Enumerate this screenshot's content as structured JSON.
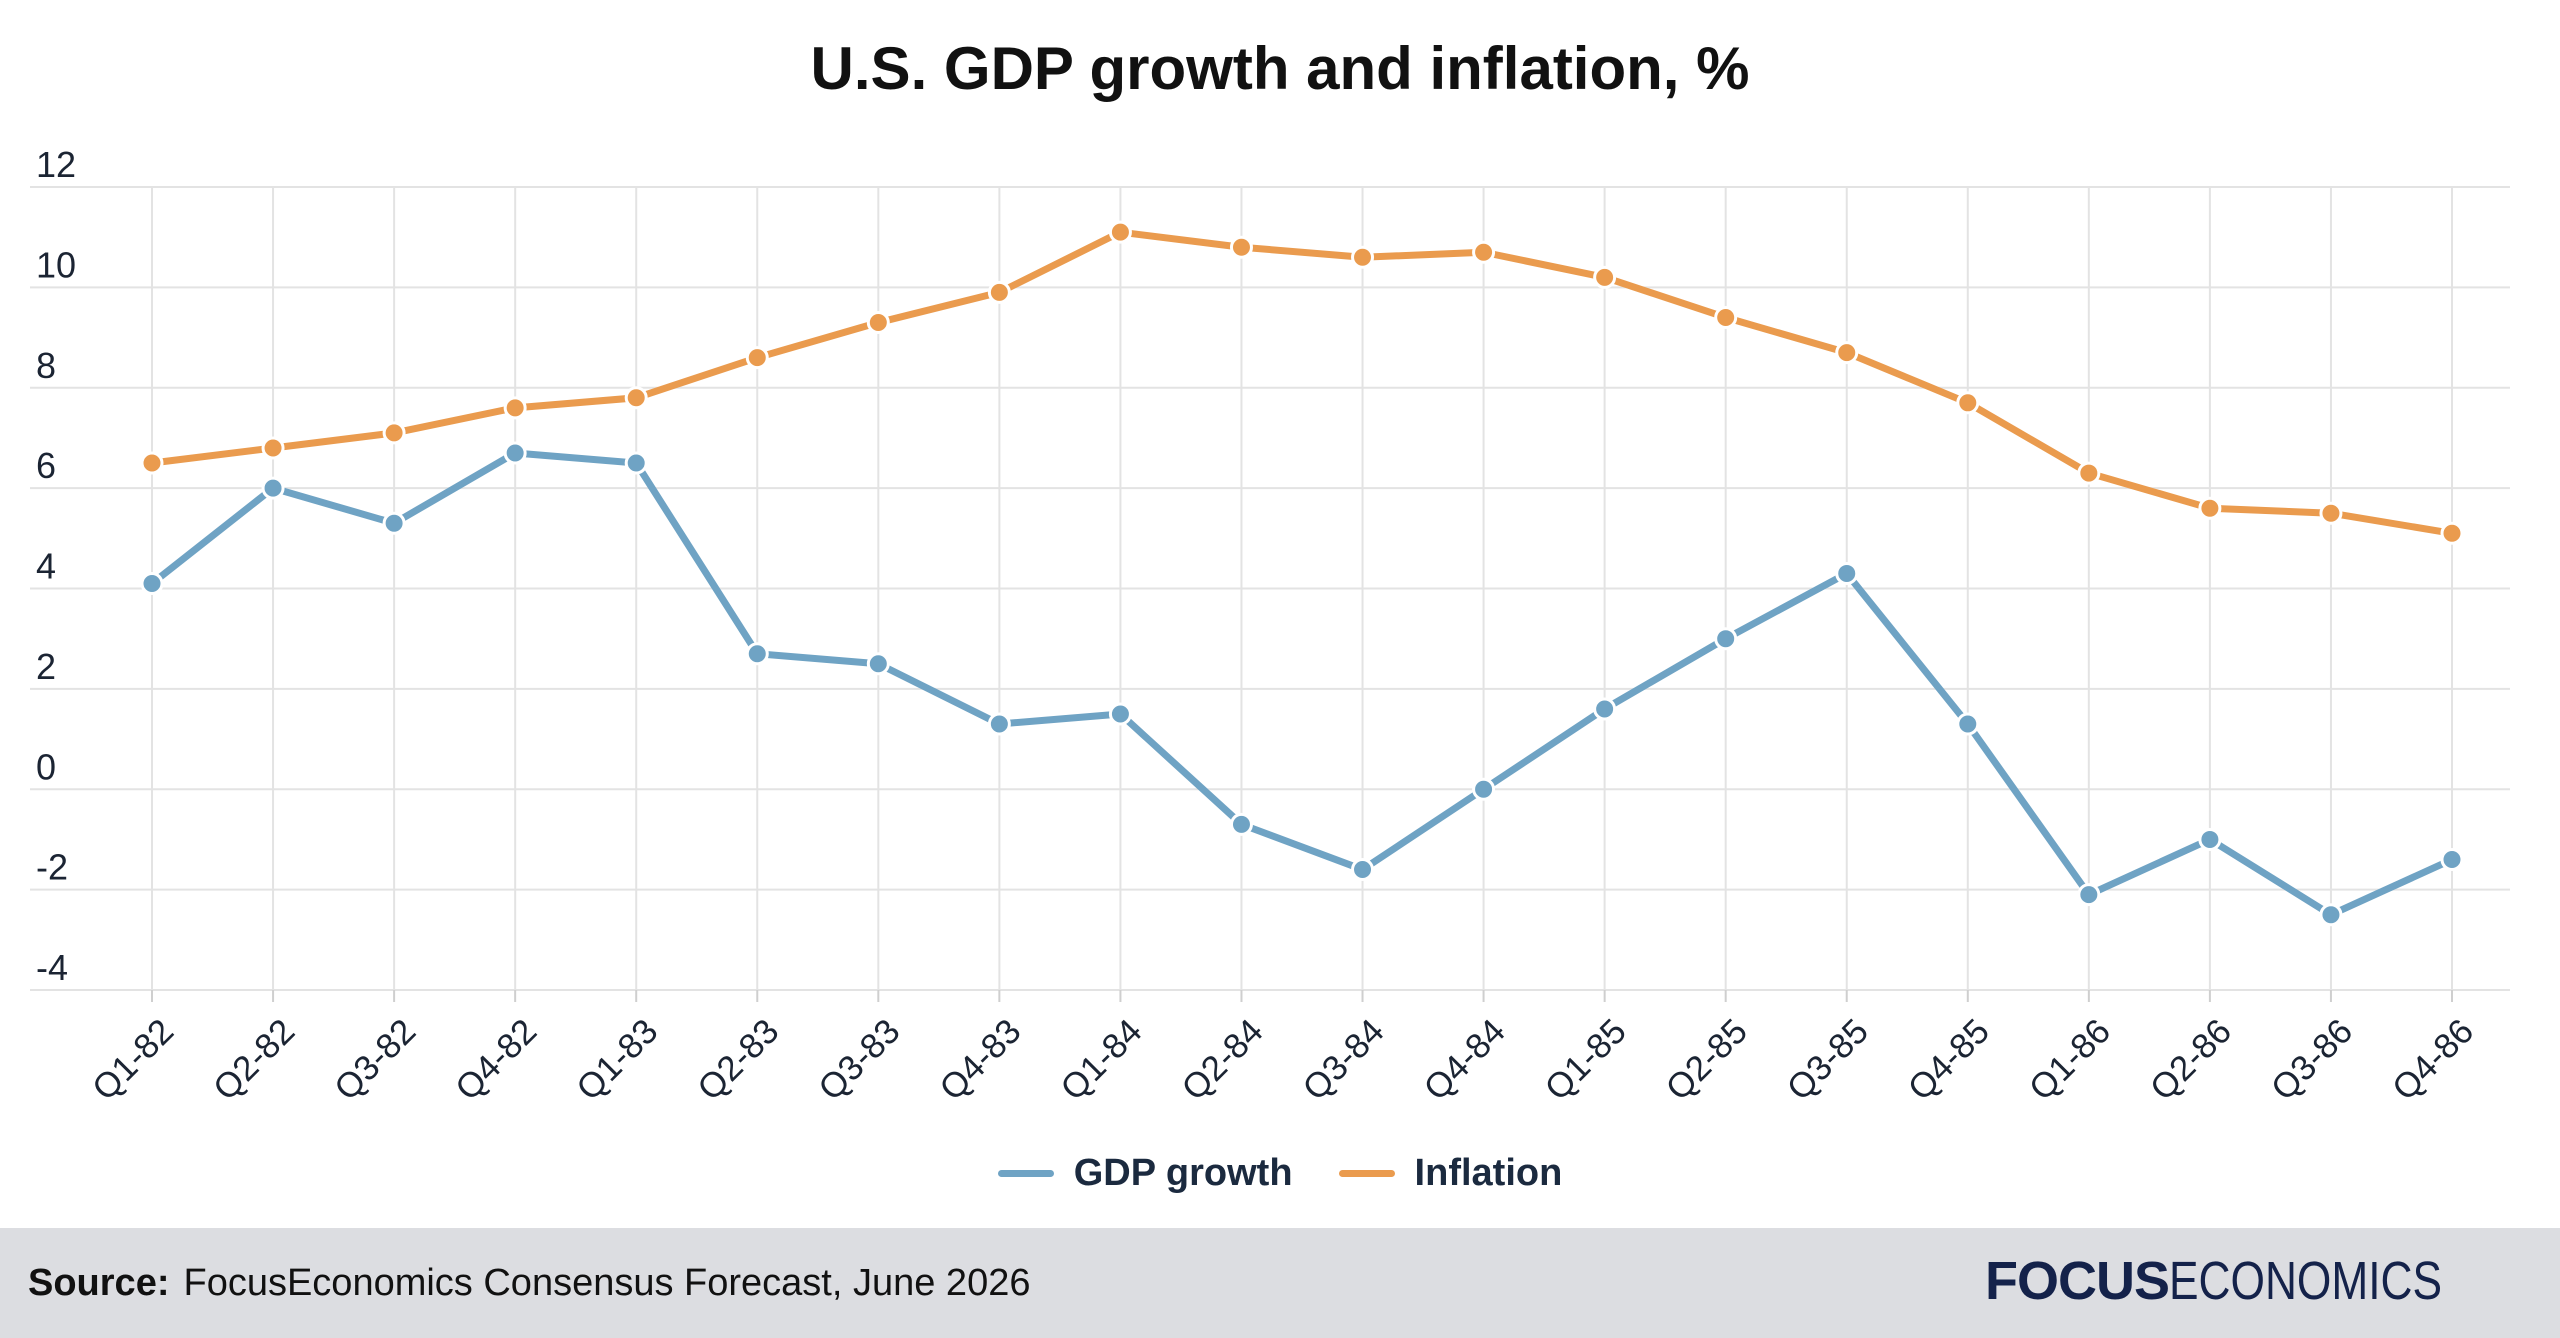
{
  "chart_data": {
    "type": "line",
    "title": "U.S. GDP growth and inflation, %",
    "categories": [
      "Q1-82",
      "Q2-82",
      "Q3-82",
      "Q4-82",
      "Q1-83",
      "Q2-83",
      "Q3-83",
      "Q4-83",
      "Q1-84",
      "Q2-84",
      "Q3-84",
      "Q4-84",
      "Q1-85",
      "Q2-85",
      "Q3-85",
      "Q4-85",
      "Q1-86",
      "Q2-86",
      "Q3-86",
      "Q4-86"
    ],
    "series": [
      {
        "name": "GDP growth",
        "color": "#6fa3c4",
        "values": [
          4.1,
          6.0,
          5.3,
          6.7,
          6.5,
          2.7,
          2.5,
          1.3,
          1.5,
          -0.7,
          -1.6,
          0.0,
          1.6,
          3.0,
          4.3,
          1.3,
          -2.1,
          -1.0,
          -2.5,
          -1.4
        ]
      },
      {
        "name": "Inflation",
        "color": "#ea9b4e",
        "values": [
          6.5,
          6.8,
          7.1,
          7.6,
          7.8,
          8.6,
          9.3,
          9.9,
          11.1,
          10.8,
          10.6,
          10.7,
          10.2,
          9.4,
          8.7,
          7.7,
          6.3,
          5.6,
          5.5,
          5.1
        ]
      }
    ],
    "ylim": [
      -4,
      12
    ],
    "yticks": [
      -4,
      -2,
      0,
      2,
      4,
      6,
      8,
      10,
      12
    ],
    "grid": true,
    "legend": "bottom-center",
    "xlabel": "",
    "ylabel": ""
  },
  "footer": {
    "source_label": "Source:",
    "source_text": "FocusEconomics Consensus Forecast, June 2026",
    "brand_bold": "FOCUS",
    "brand_light": "ECONOMICS"
  }
}
